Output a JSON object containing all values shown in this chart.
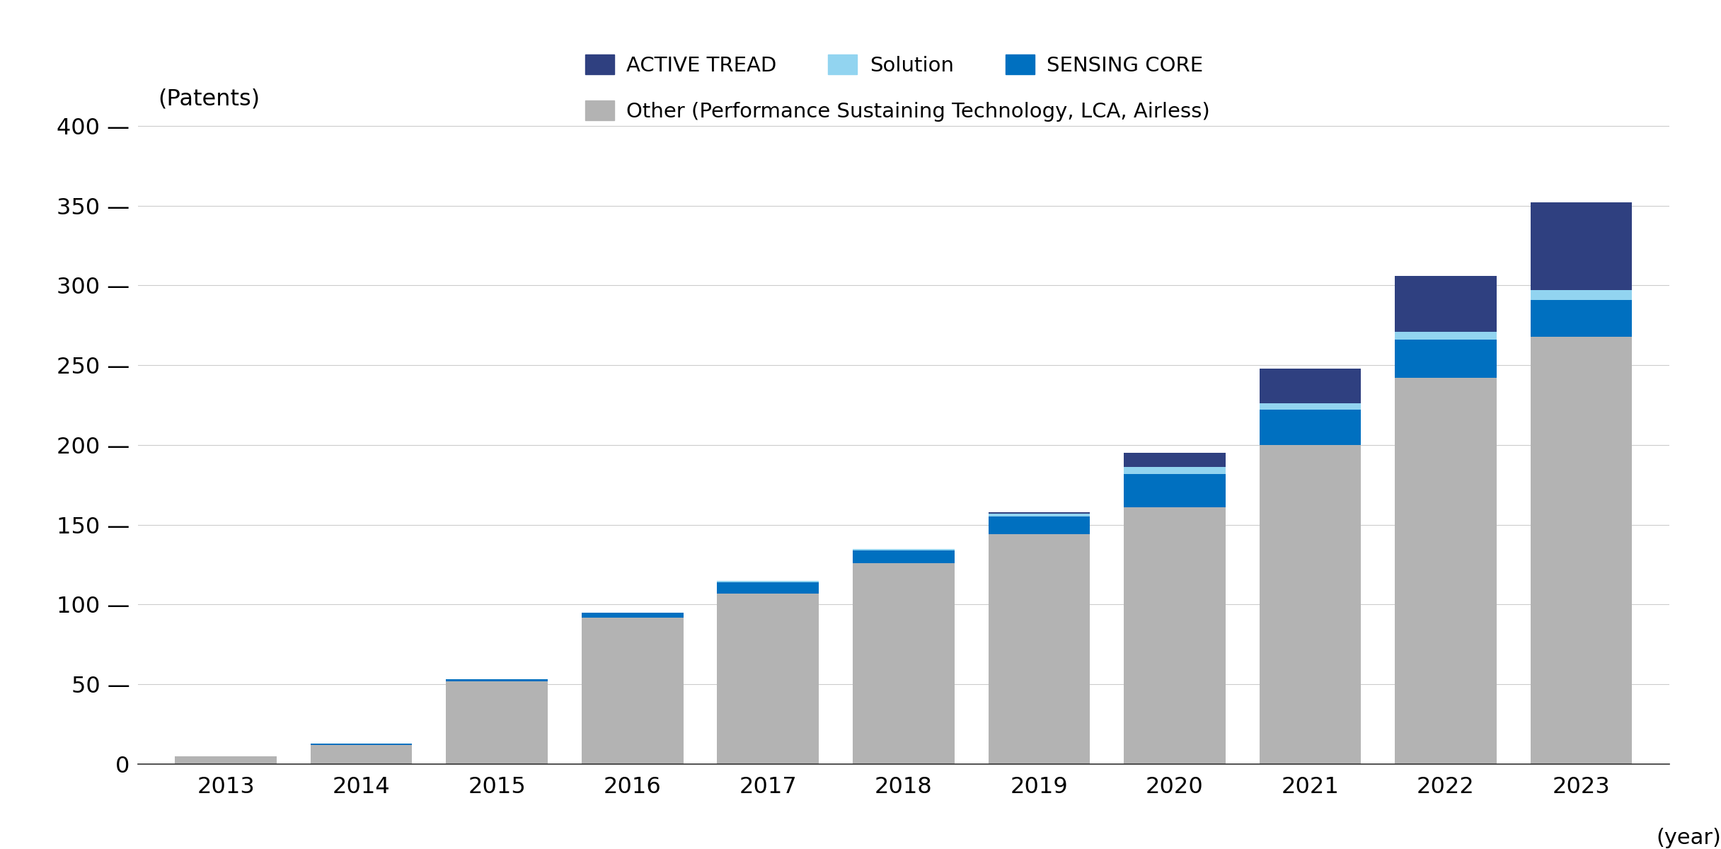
{
  "years": [
    "2013",
    "2014",
    "2015",
    "2016",
    "2017",
    "2018",
    "2019",
    "2020",
    "2021",
    "2022",
    "2023"
  ],
  "other": [
    5,
    12,
    52,
    92,
    107,
    126,
    144,
    161,
    200,
    242,
    268
  ],
  "sensing_core": [
    0,
    1,
    1,
    3,
    7,
    8,
    11,
    21,
    22,
    24,
    23
  ],
  "solution": [
    0,
    0,
    0,
    0,
    1,
    1,
    2,
    4,
    4,
    5,
    6
  ],
  "active_tread": [
    0,
    0,
    0,
    0,
    0,
    0,
    1,
    9,
    22,
    35,
    55
  ],
  "color_other": "#b3b3b3",
  "color_sensing_core": "#0070c0",
  "color_solution": "#92d4f0",
  "color_active_tread": "#2f4080",
  "ylabel": "(Patents)",
  "xlabel": "(year)",
  "yticks": [
    0,
    50,
    100,
    150,
    200,
    250,
    300,
    350,
    400
  ],
  "ylim": [
    0,
    415
  ],
  "legend_labels": [
    "ACTIVE TREAD",
    "Solution",
    "SENSING CORE",
    "Other (Performance Sustaining Technology, LCA, Airless)"
  ],
  "background_color": "#ffffff",
  "bar_width": 0.75
}
